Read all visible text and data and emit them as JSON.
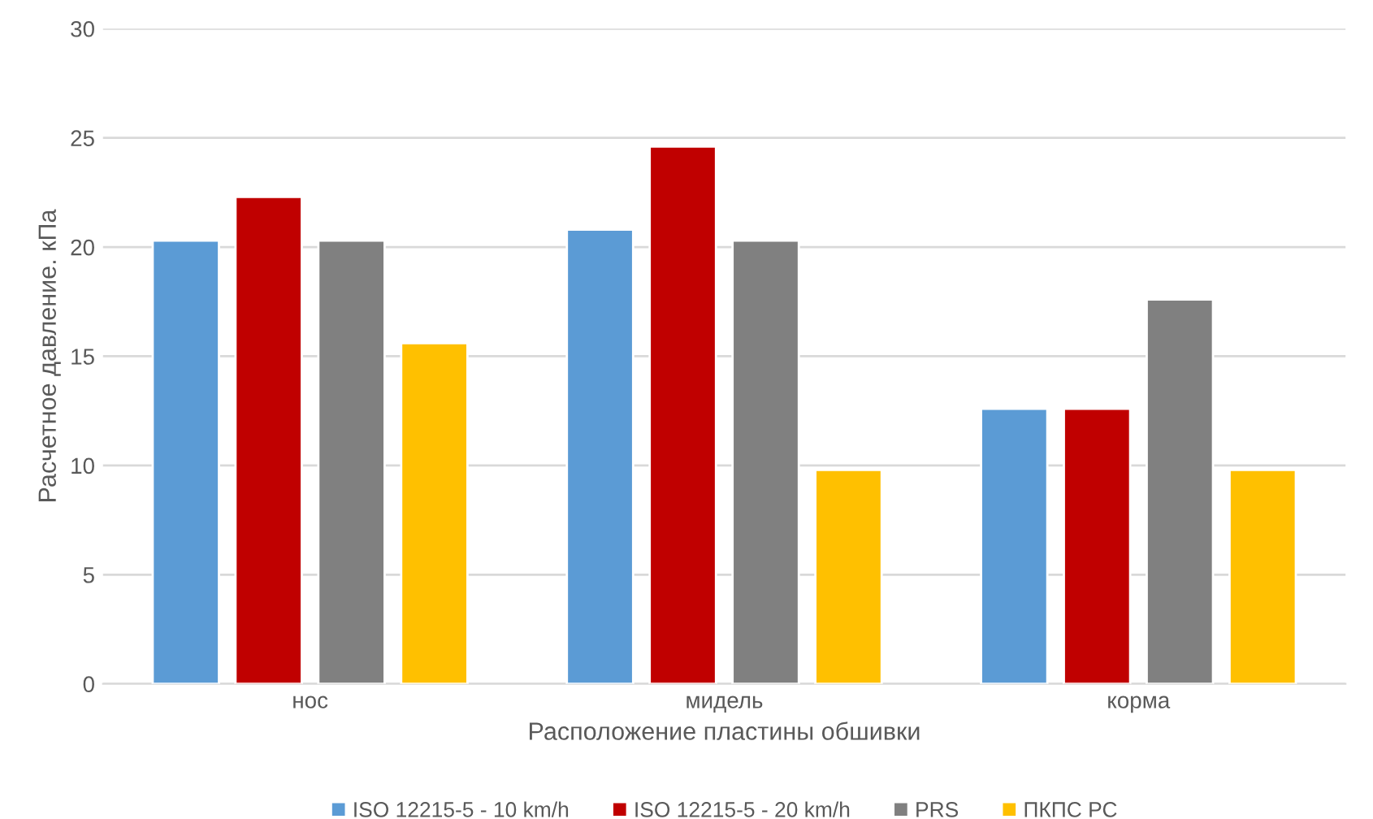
{
  "chart_data": {
    "type": "bar",
    "xlabel": "Расположение пластины обшивки",
    "ylabel": "Расчетное давление. кПа",
    "categories": [
      "нос",
      "мидель",
      "корма"
    ],
    "series": [
      {
        "name": "ISO 12215-5 - 10 km/h",
        "color": "#5b9bd5",
        "values": [
          20.3,
          20.8,
          12.6
        ]
      },
      {
        "name": "ISO 12215-5 - 20 km/h",
        "color": "#c00000",
        "values": [
          22.3,
          24.6,
          12.6
        ]
      },
      {
        "name": "PRS",
        "color": "#808080",
        "values": [
          20.3,
          20.3,
          17.6
        ]
      },
      {
        "name": "ПКПС РС",
        "color": "#ffc000",
        "values": [
          15.6,
          9.8,
          9.8
        ]
      }
    ],
    "ylim": [
      0,
      30
    ],
    "yticks": [
      0,
      5,
      10,
      15,
      20,
      25,
      30
    ],
    "grid": "y",
    "legend": "bottom"
  }
}
